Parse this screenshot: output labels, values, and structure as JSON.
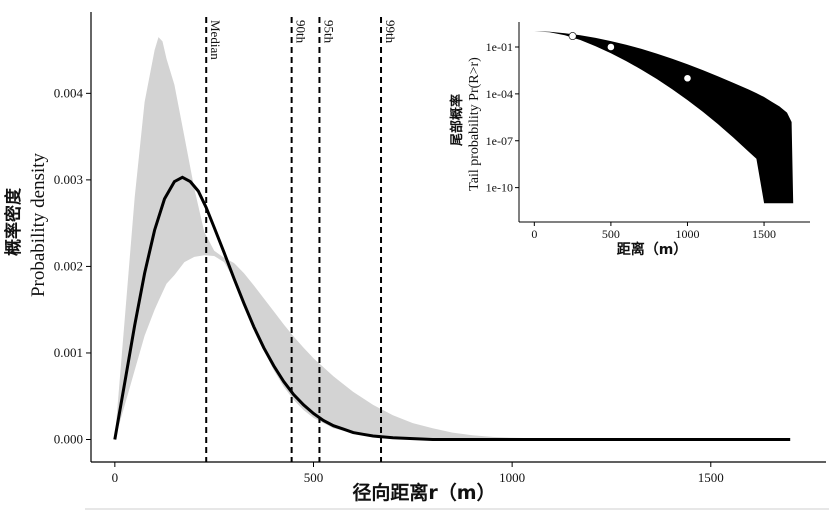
{
  "chart_data": [
    {
      "type": "line",
      "title": "",
      "xlabel": "径向距离r（m）",
      "ylabel_cn": "概率密度",
      "ylabel_en": "Probability density",
      "xlim": [
        -60,
        1790
      ],
      "ylim": [
        -0.00026,
        0.00494
      ],
      "xticks": [
        0,
        500,
        1000,
        1500
      ],
      "yticks": [
        0.0,
        0.001,
        0.002,
        0.003,
        0.004
      ],
      "ytick_labels": [
        "0.000",
        "0.001",
        "0.002",
        "0.003",
        "0.004"
      ],
      "grid": false,
      "series": [
        {
          "role": "density-curve",
          "color": "#000000",
          "x": [
            0,
            25,
            50,
            75,
            100,
            125,
            150,
            170,
            190,
            210,
            230,
            250,
            275,
            300,
            325,
            350,
            375,
            400,
            425,
            450,
            475,
            500,
            525,
            550,
            575,
            600,
            625,
            650,
            675,
            700,
            750,
            800,
            850,
            900,
            1000,
            1100,
            1200,
            1300,
            1400,
            1500,
            1600,
            1700
          ],
          "y": [
            0.0,
            0.00066,
            0.00132,
            0.00192,
            0.00242,
            0.00278,
            0.00298,
            0.00303,
            0.00298,
            0.00287,
            0.00268,
            0.00245,
            0.00216,
            0.00186,
            0.00157,
            0.0013,
            0.00106,
            0.00085,
            0.00067,
            0.00052,
            0.0004,
            0.0003,
            0.00022,
            0.00016,
            0.00012,
            8e-05,
            6e-05,
            4e-05,
            3e-05,
            2e-05,
            1e-05,
            0.0,
            0.0,
            0.0,
            0.0,
            0.0,
            0.0,
            0.0,
            0.0,
            0.0,
            0.0,
            0.0
          ]
        },
        {
          "role": "uncertainty-band",
          "color": "#d3d3d3",
          "x": [
            0,
            25,
            50,
            75,
            100,
            110,
            120,
            130,
            150,
            175,
            200,
            225,
            250,
            275,
            300,
            325,
            350,
            375,
            400,
            425,
            450,
            475,
            500,
            550,
            600,
            650,
            700,
            750,
            800,
            850,
            900,
            950,
            1000,
            1100,
            1200,
            1300,
            1400,
            1500,
            1600,
            1700
          ],
          "upper": [
            0.0,
            0.0014,
            0.0028,
            0.0039,
            0.0045,
            0.00465,
            0.0046,
            0.0044,
            0.0041,
            0.0035,
            0.0029,
            0.0024,
            0.00218,
            0.0021,
            0.00204,
            0.00192,
            0.00178,
            0.00163,
            0.00148,
            0.00133,
            0.00119,
            0.00106,
            0.00094,
            0.00073,
            0.00055,
            0.0004,
            0.00028,
            0.00019,
            0.00013,
            8e-05,
            5e-05,
            3e-05,
            2e-05,
            1e-05,
            0.0,
            0.0,
            0.0,
            0.0,
            0.0,
            0.0
          ],
          "lower": [
            0.0,
            0.0004,
            0.0008,
            0.0012,
            0.0015,
            0.0016,
            0.0017,
            0.0018,
            0.0019,
            0.00205,
            0.00211,
            0.00213,
            0.00212,
            0.00205,
            0.00185,
            0.00158,
            0.0013,
            0.00103,
            0.0008,
            0.00061,
            0.00046,
            0.00034,
            0.00025,
            0.00013,
            7e-05,
            3e-05,
            1e-05,
            0.0,
            0.0,
            0.0,
            0.0,
            0.0,
            0.0,
            0.0,
            0.0,
            0.0,
            0.0,
            0.0,
            0.0,
            0.0
          ]
        }
      ],
      "vlines": [
        {
          "x": 230,
          "label": "Median"
        },
        {
          "x": 445,
          "label": "90th"
        },
        {
          "x": 515,
          "label": "95th"
        },
        {
          "x": 670,
          "label": "99th"
        }
      ]
    },
    {
      "type": "area",
      "title": "",
      "xlabel": "距离（m）",
      "ylabel_cn": "尾部概率",
      "ylabel_en": "Tail probability Pr(R>r)",
      "yscale": "log",
      "xlim": [
        -100,
        1800
      ],
      "ylim_log10": [
        -12.2,
        0.6
      ],
      "xticks": [
        0,
        500,
        1000,
        1500
      ],
      "yticks_log10": [
        -1,
        -4,
        -7,
        -10
      ],
      "ytick_labels": [
        "1e-01",
        "1e-04",
        "1e-07",
        "1e-10"
      ],
      "band_color": "#000000",
      "band": {
        "x": [
          0,
          100,
          200,
          300,
          400,
          500,
          600,
          700,
          800,
          900,
          1000,
          1100,
          1200,
          1300,
          1400,
          1450,
          1500,
          1550,
          1600,
          1650,
          1680,
          1690
        ],
        "upper_log10": [
          0.0,
          -0.03,
          -0.12,
          -0.25,
          -0.42,
          -0.62,
          -0.86,
          -1.12,
          -1.42,
          -1.75,
          -2.1,
          -2.48,
          -2.88,
          -3.3,
          -3.72,
          -3.95,
          -4.2,
          -4.5,
          -4.8,
          -5.2,
          -5.8,
          -11.0
        ],
        "lower_log10": [
          0.0,
          -0.05,
          -0.25,
          -0.55,
          -0.95,
          -1.4,
          -1.9,
          -2.45,
          -3.05,
          -3.7,
          -4.4,
          -5.15,
          -5.95,
          -6.8,
          -7.7,
          -8.15,
          -11.0,
          -11.0,
          -11.0,
          -11.0,
          -11.0,
          -11.0
        ]
      },
      "points": {
        "x": [
          250,
          500,
          1000
        ],
        "log10": [
          -0.3,
          -1.0,
          -3.0
        ]
      }
    }
  ]
}
